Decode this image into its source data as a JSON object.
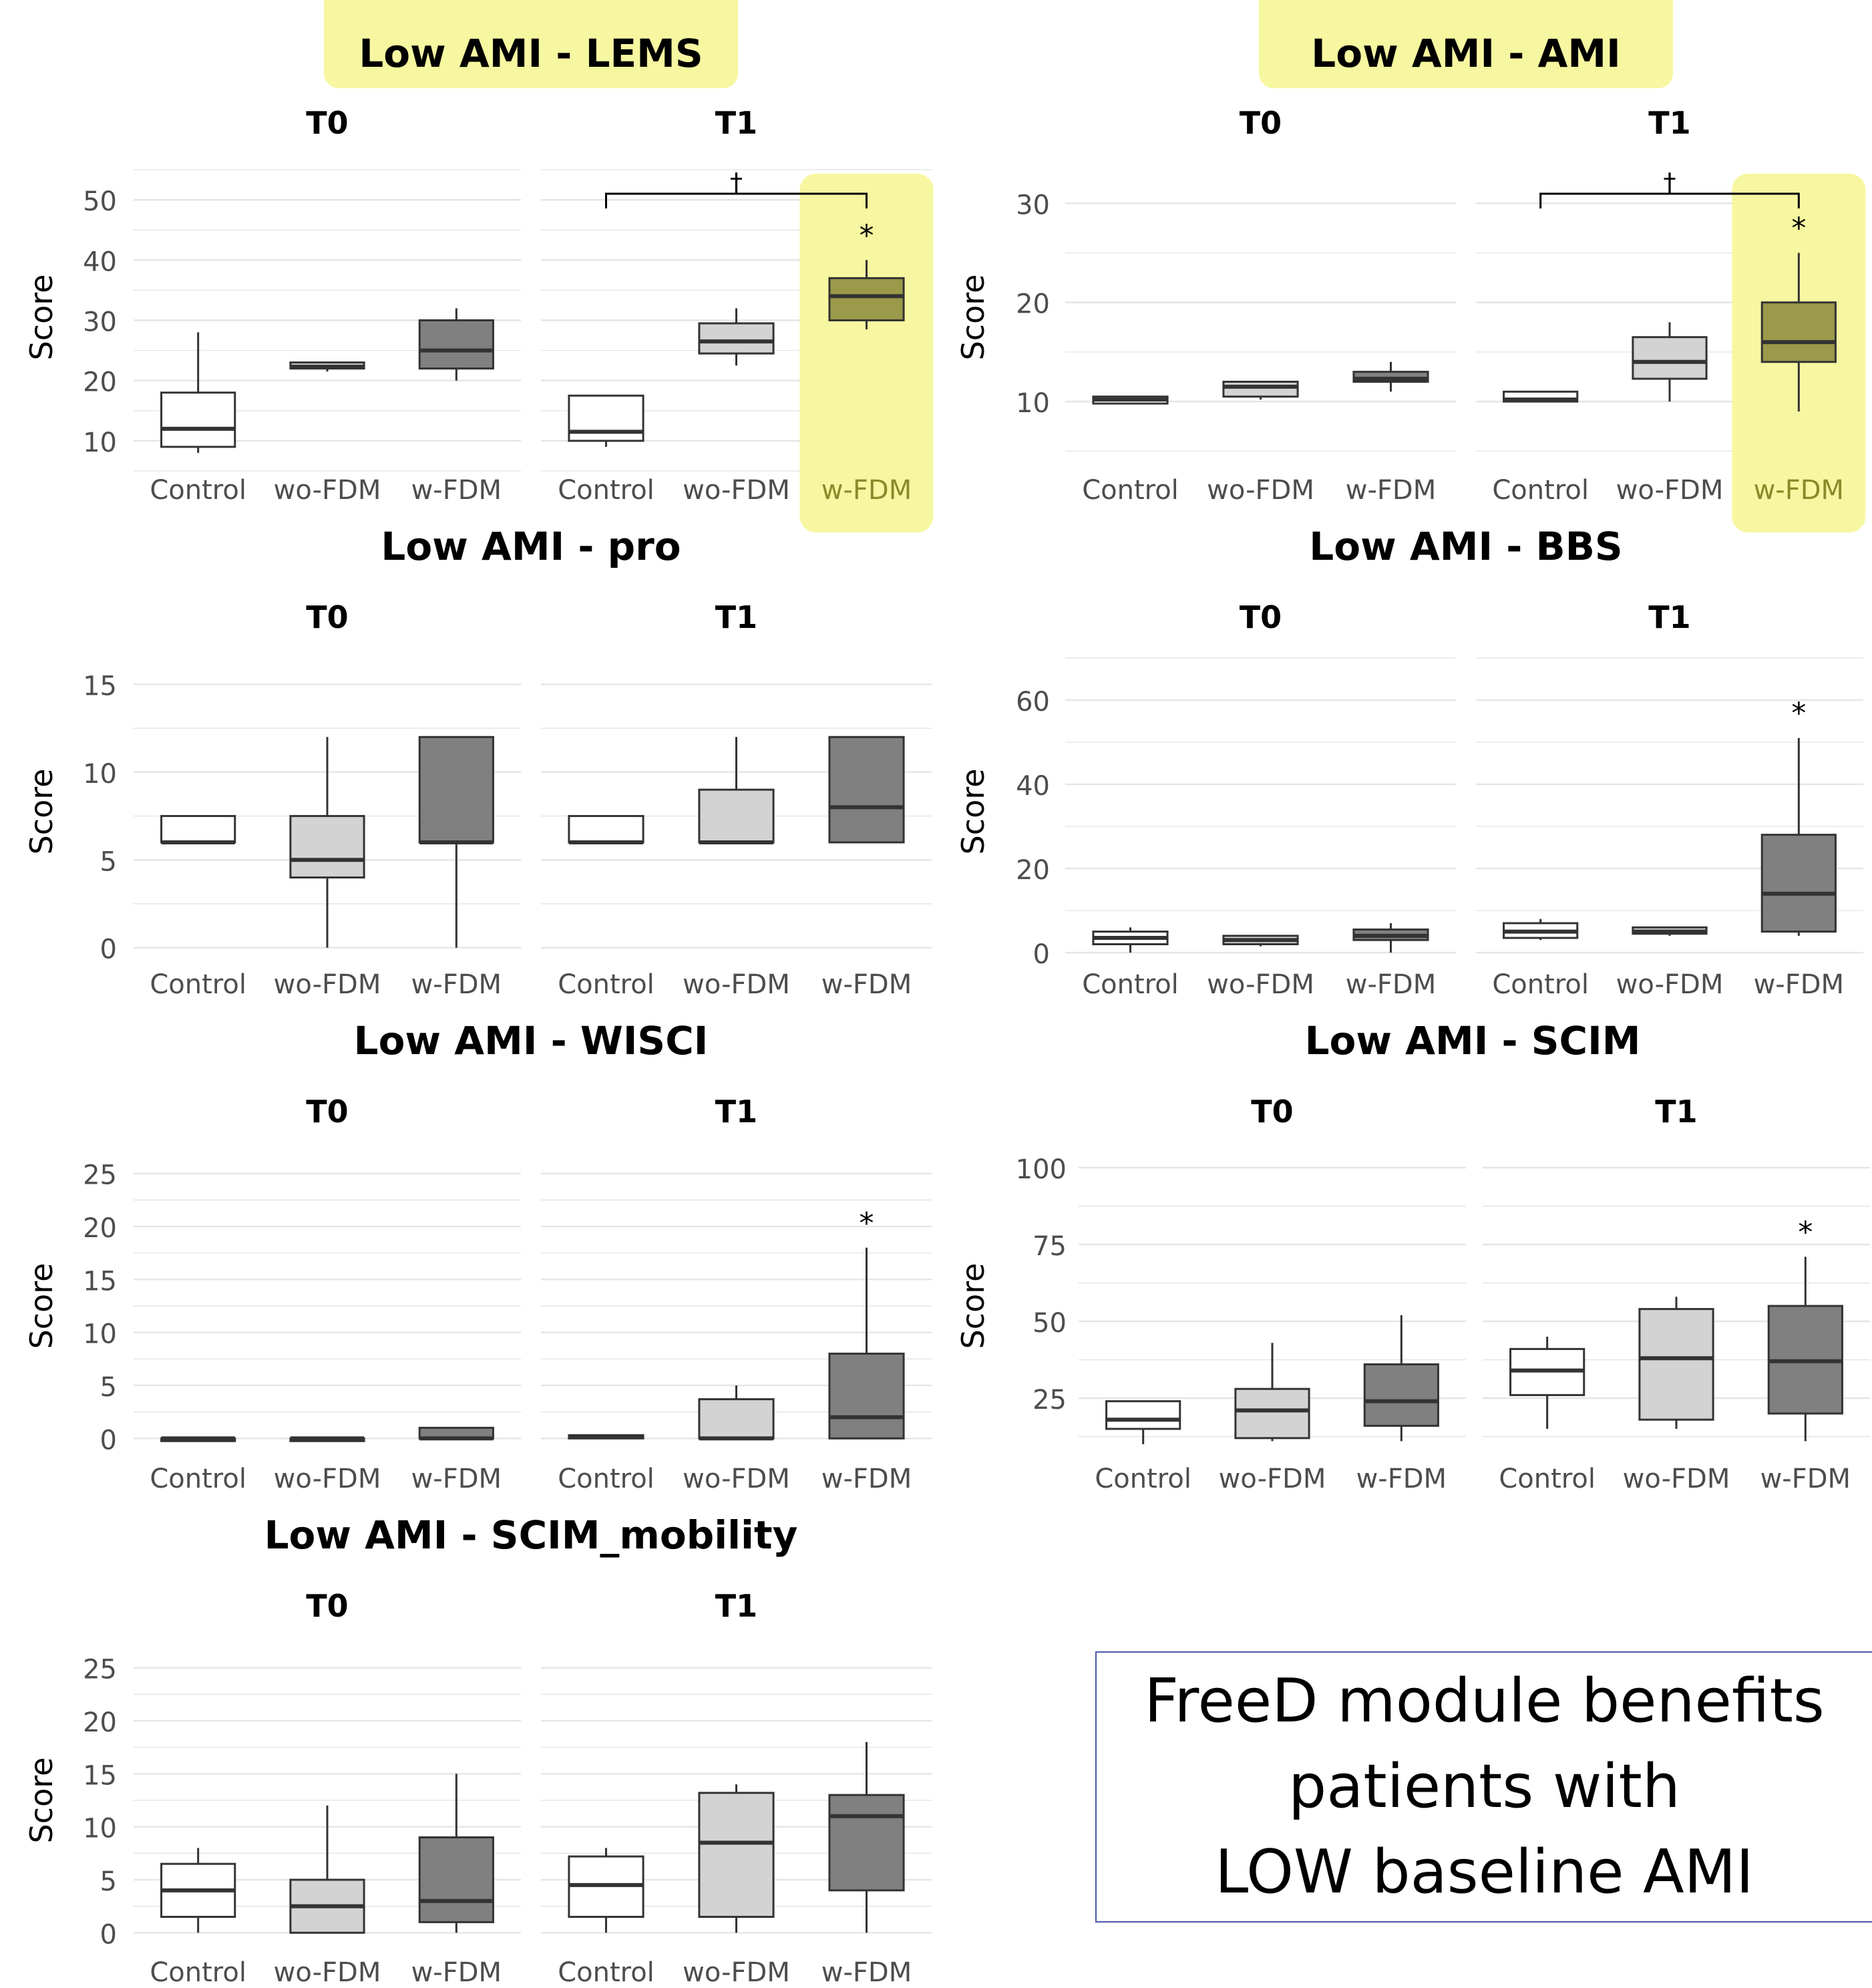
{
  "colors": {
    "control": "#ffffff",
    "wo_fdm": "#d3d3d3",
    "w_fdm": "#808080",
    "w_fdm_highlighted": "#9a9a4a",
    "highlight": "#f7f7a1",
    "grid": "#e5e5e5",
    "axis_text": "#4d4d4d"
  },
  "note": {
    "lines": [
      "FreeD module benefits",
      "patients with",
      "LOW baseline AMI"
    ]
  },
  "chart_data": [
    {
      "type": "box",
      "title": "Low AMI - LEMS",
      "title_highlighted": true,
      "ylabel": "Score",
      "ylim": [
        5,
        56
      ],
      "yticks": [
        10,
        20,
        30,
        40,
        50
      ],
      "facets": [
        {
          "name": "T0",
          "categories": [
            "Control",
            "wo-FDM",
            "w-FDM"
          ],
          "boxes": [
            {
              "min": 8,
              "q1": 9,
              "median": 12,
              "q3": 18,
              "max": 28
            },
            {
              "min": 21.5,
              "q1": 22,
              "median": 22.3,
              "q3": 23,
              "max": 23
            },
            {
              "min": 20,
              "q1": 22,
              "median": 25,
              "q3": 30,
              "max": 32
            }
          ]
        },
        {
          "name": "T1",
          "categories": [
            "Control",
            "wo-FDM",
            "w-FDM"
          ],
          "boxes": [
            {
              "min": 9,
              "q1": 10,
              "median": 11.5,
              "q3": 17.5,
              "max": 17.5
            },
            {
              "min": 22.5,
              "q1": 24.5,
              "median": 26.5,
              "q3": 29.5,
              "max": 32
            },
            {
              "min": 28.5,
              "q1": 30,
              "median": 34,
              "q3": 37,
              "max": 40
            }
          ],
          "highlight_category": "w-FDM",
          "annotations": [
            {
              "category": "w-FDM",
              "text": "*"
            }
          ],
          "bracket": {
            "from": "Control",
            "to": "w-FDM",
            "text": "†"
          }
        }
      ]
    },
    {
      "type": "box",
      "title": "Low AMI - AMI",
      "title_highlighted": true,
      "ylabel": "Score",
      "ylim": [
        3,
        34
      ],
      "yticks": [
        10,
        20,
        30
      ],
      "facets": [
        {
          "name": "T0",
          "categories": [
            "Control",
            "wo-FDM",
            "w-FDM"
          ],
          "boxes": [
            {
              "min": 9.8,
              "q1": 9.8,
              "median": 10.2,
              "q3": 10.5,
              "max": 10.5
            },
            {
              "min": 10.2,
              "q1": 10.5,
              "median": 11.5,
              "q3": 12,
              "max": 12
            },
            {
              "min": 11,
              "q1": 12,
              "median": 12.3,
              "q3": 13,
              "max": 14
            }
          ]
        },
        {
          "name": "T1",
          "categories": [
            "Control",
            "wo-FDM",
            "w-FDM"
          ],
          "boxes": [
            {
              "min": 10,
              "q1": 10,
              "median": 10.2,
              "q3": 11,
              "max": 11
            },
            {
              "min": 10,
              "q1": 12.3,
              "median": 14,
              "q3": 16.5,
              "max": 18
            },
            {
              "min": 9,
              "q1": 14,
              "median": 16,
              "q3": 20,
              "max": 25
            }
          ],
          "highlight_category": "w-FDM",
          "annotations": [
            {
              "category": "w-FDM",
              "text": "*"
            }
          ],
          "bracket": {
            "from": "Control",
            "to": "w-FDM",
            "text": "†"
          }
        }
      ]
    },
    {
      "type": "box",
      "title": "Low AMI - pro",
      "ylabel": "Score",
      "ylim": [
        -1,
        16.5
      ],
      "yticks": [
        0,
        5,
        10,
        15
      ],
      "facets": [
        {
          "name": "T0",
          "categories": [
            "Control",
            "wo-FDM",
            "w-FDM"
          ],
          "boxes": [
            {
              "min": 6,
              "q1": 6,
              "median": 6,
              "q3": 7.5,
              "max": 7.5
            },
            {
              "min": 0,
              "q1": 4,
              "median": 5,
              "q3": 7.5,
              "max": 12
            },
            {
              "min": 0,
              "q1": 6,
              "median": 6,
              "q3": 12,
              "max": 12
            }
          ]
        },
        {
          "name": "T1",
          "categories": [
            "Control",
            "wo-FDM",
            "w-FDM"
          ],
          "boxes": [
            {
              "min": 6,
              "q1": 6,
              "median": 6,
              "q3": 7.5,
              "max": 7.5
            },
            {
              "min": 6,
              "q1": 6,
              "median": 6,
              "q3": 9,
              "max": 12
            },
            {
              "min": 6,
              "q1": 6,
              "median": 8,
              "q3": 12,
              "max": 12
            }
          ]
        }
      ]
    },
    {
      "type": "box",
      "title": "Low AMI - BBS",
      "ylabel": "Score",
      "ylim": [
        -3,
        70
      ],
      "yticks": [
        0,
        20,
        40,
        60
      ],
      "facets": [
        {
          "name": "T0",
          "categories": [
            "Control",
            "wo-FDM",
            "w-FDM"
          ],
          "boxes": [
            {
              "min": 0,
              "q1": 2,
              "median": 3.5,
              "q3": 5,
              "max": 6
            },
            {
              "min": 1.5,
              "q1": 2,
              "median": 3,
              "q3": 4,
              "max": 4
            },
            {
              "min": 0,
              "q1": 3,
              "median": 4,
              "q3": 5.5,
              "max": 7
            }
          ]
        },
        {
          "name": "T1",
          "categories": [
            "Control",
            "wo-FDM",
            "w-FDM"
          ],
          "boxes": [
            {
              "min": 3,
              "q1": 3.5,
              "median": 5,
              "q3": 7,
              "max": 8
            },
            {
              "min": 4,
              "q1": 4.5,
              "median": 5,
              "q3": 6,
              "max": 6
            },
            {
              "min": 4,
              "q1": 5,
              "median": 14,
              "q3": 28,
              "max": 51
            }
          ],
          "annotations": [
            {
              "category": "w-FDM",
              "text": "*"
            }
          ]
        }
      ]
    },
    {
      "type": "box",
      "title": "Low AMI - WISCI",
      "ylabel": "Score",
      "ylim": [
        -2,
        27
      ],
      "yticks": [
        0,
        5,
        10,
        15,
        20,
        25
      ],
      "facets": [
        {
          "name": "T0",
          "categories": [
            "Control",
            "wo-FDM",
            "w-FDM"
          ],
          "boxes": [
            {
              "min": 0,
              "q1": 0,
              "median": 0,
              "q3": 0,
              "max": 0
            },
            {
              "min": 0,
              "q1": 0,
              "median": 0,
              "q3": 0,
              "max": 0
            },
            {
              "min": 0,
              "q1": 0,
              "median": 0,
              "q3": 1,
              "max": 1
            }
          ]
        },
        {
          "name": "T1",
          "categories": [
            "Control",
            "wo-FDM",
            "w-FDM"
          ],
          "boxes": [
            {
              "min": 0,
              "q1": 0,
              "median": 0.2,
              "q3": 0.3,
              "max": 0.3
            },
            {
              "min": 0,
              "q1": 0,
              "median": 0,
              "q3": 3.7,
              "max": 5
            },
            {
              "min": 0,
              "q1": 0,
              "median": 2,
              "q3": 8,
              "max": 18
            }
          ],
          "annotations": [
            {
              "category": "w-FDM",
              "text": "*"
            }
          ]
        }
      ]
    },
    {
      "type": "box",
      "title": "Low AMI - SCIM",
      "ylabel": "Score",
      "ylim": [
        5,
        105
      ],
      "yticks": [
        25,
        50,
        75,
        100
      ],
      "facets": [
        {
          "name": "T0",
          "categories": [
            "Control",
            "wo-FDM",
            "w-FDM"
          ],
          "boxes": [
            {
              "min": 10,
              "q1": 15,
              "median": 18,
              "q3": 24,
              "max": 24
            },
            {
              "min": 11,
              "q1": 12,
              "median": 21,
              "q3": 28,
              "max": 43
            },
            {
              "min": 11,
              "q1": 16,
              "median": 24,
              "q3": 36,
              "max": 52
            }
          ]
        },
        {
          "name": "T1",
          "categories": [
            "Control",
            "wo-FDM",
            "w-FDM"
          ],
          "boxes": [
            {
              "min": 15,
              "q1": 26,
              "median": 34,
              "q3": 41,
              "max": 45
            },
            {
              "min": 15,
              "q1": 18,
              "median": 38,
              "q3": 54,
              "max": 58
            },
            {
              "min": 11,
              "q1": 20,
              "median": 37,
              "q3": 55,
              "max": 71
            }
          ],
          "annotations": [
            {
              "category": "w-FDM",
              "text": "*"
            }
          ]
        }
      ]
    },
    {
      "type": "box",
      "title": "Low AMI - SCIM_mobility",
      "ylabel": "Score",
      "ylim": [
        -2,
        27
      ],
      "yticks": [
        0,
        5,
        10,
        15,
        20,
        25
      ],
      "facets": [
        {
          "name": "T0",
          "categories": [
            "Control",
            "wo-FDM",
            "w-FDM"
          ],
          "boxes": [
            {
              "min": 0,
              "q1": 1.5,
              "median": 4,
              "q3": 6.5,
              "max": 8
            },
            {
              "min": 0,
              "q1": 0,
              "median": 2.5,
              "q3": 5,
              "max": 12
            },
            {
              "min": 0,
              "q1": 1,
              "median": 3,
              "q3": 9,
              "max": 15
            }
          ]
        },
        {
          "name": "T1",
          "categories": [
            "Control",
            "wo-FDM",
            "w-FDM"
          ],
          "boxes": [
            {
              "min": 0,
              "q1": 1.5,
              "median": 4.5,
              "q3": 7.2,
              "max": 8
            },
            {
              "min": 0,
              "q1": 1.5,
              "median": 8.5,
              "q3": 13.2,
              "max": 14
            },
            {
              "min": 0,
              "q1": 4,
              "median": 11,
              "q3": 13,
              "max": 18
            }
          ]
        }
      ]
    }
  ]
}
